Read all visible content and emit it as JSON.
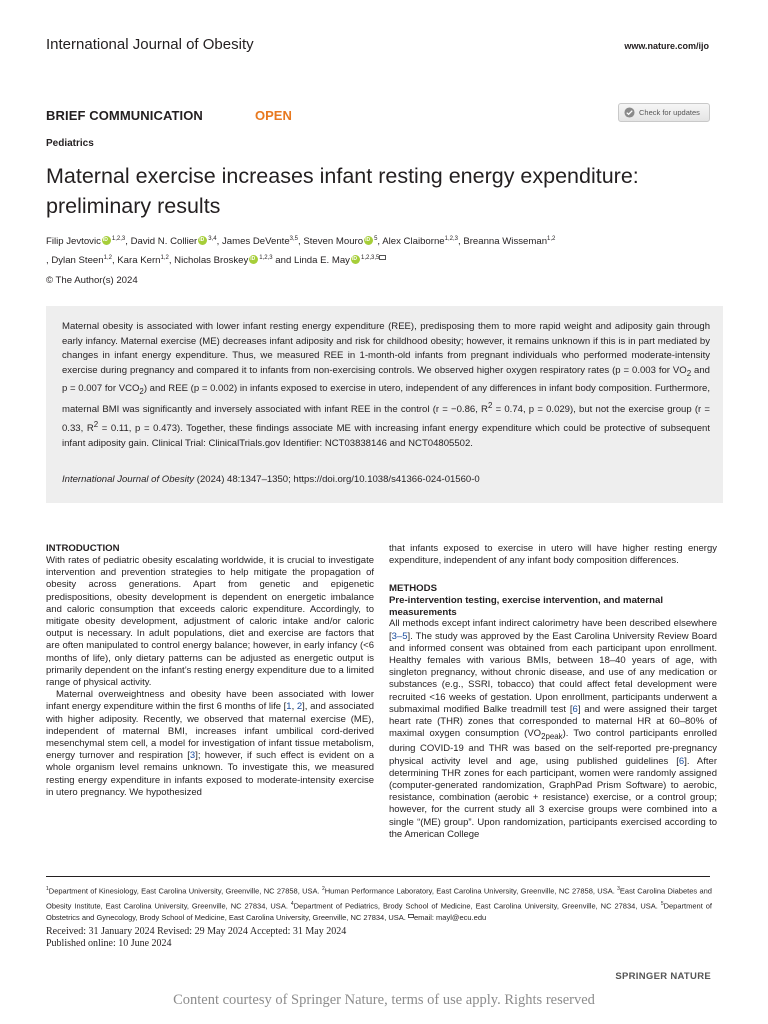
{
  "header": {
    "journal": "International Journal of Obesity",
    "url": "www.nature.com/ijo"
  },
  "article_type": "BRIEF COMMUNICATION",
  "open_label": "OPEN",
  "check_updates": "Check for updates",
  "section": "Pediatrics",
  "title": "Maternal exercise increases infant resting energy expenditure: preliminary results",
  "authors": {
    "a1": "Filip Jevtovic",
    "a1_sup": "1,2,3",
    "a2": ", David N. Collier",
    "a2_sup": "3,4",
    "a3": ", James DeVente",
    "a3_sup": "3,5",
    "a4": ", Steven Mouro",
    "a4_sup": "5",
    "a5": ", Alex Claiborne",
    "a5_sup": "1,2,3",
    "a6": ", Breanna Wisseman",
    "a6_sup": "1,2",
    "a7": ", Dylan Steen",
    "a7_sup": "1,2",
    "a8": ", Kara Kern",
    "a8_sup": "1,2",
    "a9": ", Nicholas Broskey",
    "a9_sup": "1,2,3",
    "a10": " and Linda E. May",
    "a10_sup": "1,2,3,5"
  },
  "copyright": "© The Author(s) 2024",
  "abstract": {
    "p1": "Maternal obesity is associated with lower infant resting energy expenditure (REE), predisposing them to more rapid weight and adiposity gain through early infancy. Maternal exercise (ME) decreases infant adiposity and risk for childhood obesity; however, it remains unknown if this is in part mediated by changes in infant energy expenditure. Thus, we measured REE in 1-month-old infants from pregnant individuals who performed moderate-intensity exercise during pregnancy and compared it to infants from non-exercising controls. We observed higher oxygen respiratory rates (p = 0.003 for VO",
    "p2": " and p = 0.007 for VCO",
    "p3": ") and REE (p = 0.002) in infants exposed to exercise in utero, independent of any differences in infant body composition. Furthermore, maternal BMI was significantly and inversely associated with infant REE in the control (r = −0.86, R",
    "p4": " = 0.74, p = 0.029), but not the exercise group (r = 0.33, R",
    "p5": " = 0.11, p = 0.473). Together, these findings associate ME with increasing infant energy expenditure which could be protective of subsequent infant adiposity gain. Clinical Trial: ClinicalTrials.gov Identifier: NCT03838146 and NCT04805502.",
    "sub2": "2",
    "journal_name": "International Journal of Obesity",
    "citation": " (2024) 48:1347–1350; https://doi.org/10.1038/s41366-024-01560-0"
  },
  "intro": {
    "heading": "INTRODUCTION",
    "p1": "With rates of pediatric obesity escalating worldwide, it is crucial to investigate intervention and prevention strategies to help mitigate the propagation of obesity across generations. Apart from genetic and epigenetic predispositions, obesity development is dependent on energetic imbalance and caloric consumption that exceeds caloric expenditure. Accordingly, to mitigate obesity development, adjustment of caloric intake and/or caloric output is necessary. In adult populations, diet and exercise are factors that are often manipulated to control energy balance; however, in early infancy (<6 months of life), only dietary patterns can be adjusted as energetic output is primarily dependent on the infant’s resting energy expenditure due to a limited range of physical activity.",
    "p2a": "Maternal overweightness and obesity have been associated with lower infant energy expenditure within the first 6 months of life [",
    "r1": "1",
    "comma": ", ",
    "r2": "2",
    "p2b": "], and associated with higher adiposity. Recently, we observed that maternal exercise (ME), independent of maternal BMI, increases infant umbilical cord-derived mesenchymal stem cell, a model for investigation of infant tissue metabolism, energy turnover and respiration [",
    "r3": "3",
    "p2c": "]; however, if such effect is evident on a whole organism level remains unknown. To investigate this, we measured resting energy expenditure in infants exposed to moderate-intensity exercise in utero pregnancy. We hypothesized"
  },
  "right_col": {
    "cont": "that infants exposed to exercise in utero will have higher resting energy expenditure, independent of any infant body composition differences.",
    "methods_heading": "METHODS",
    "sub_heading": "Pre-intervention testing, exercise intervention, and maternal measurements",
    "m1": "All methods except infant indirect calorimetry have been described elsewhere [",
    "r35": "3–5",
    "m2": "]. The study was approved by the East Carolina University Review Board and informed consent was obtained from each participant upon enrollment. Healthy females with various BMIs, between 18–40 years of age, with singleton pregnancy, without chronic disease, and use of any medication or substances (e.g., SSRI, tobacco) that could affect fetal development were recruited <16 weeks of gestation. Upon enrollment, participants underwent a submaximal modified Balke treadmill test [",
    "r6": "6",
    "m3": "] and were assigned their target heart rate (THR) zones that corresponded to maternal HR at 60–80% of maximal oxygen consumption (VO",
    "vo2sub": "2peak",
    "m4": "). Two control participants enrolled during COVID-19 and THR was based on the self-reported pre-pregnancy physical activity level and age, using published guidelines [",
    "r6b": "6",
    "m5": "]. After determining THR zones for each participant, women were randomly assigned (computer-generated randomization, GraphPad Prism Software) to aerobic, resistance, combination (aerobic + resistance) exercise, or a control group; however, for the current study all 3 exercise groups were combined into a single “(ME) group”. Upon randomization, participants exercised according to the American College"
  },
  "footnotes": {
    "s1": "1",
    "t1": "Department of Kinesiology, East Carolina University, Greenville, NC 27858, USA. ",
    "s2": "2",
    "t2": "Human Performance Laboratory, East Carolina University, Greenville, NC 27858, USA. ",
    "s3": "3",
    "t3": "East Carolina Diabetes and Obesity Institute, East Carolina University, Greenville, NC 27834, USA. ",
    "s4": "4",
    "t4": "Department of Pediatrics, Brody School of Medicine, East Carolina University, Greenville, NC 27834, USA. ",
    "s5": "5",
    "t5": "Department of Obstetrics and Gynecology, Brody School of Medicine, East Carolina University, Greenville, NC 27834, USA. ",
    "email": "email: mayl@ecu.edu"
  },
  "dates": {
    "line1": "Received: 31 January 2024 Revised: 29 May 2024 Accepted: 31 May 2024",
    "line2": "Published online: 10 June 2024"
  },
  "publisher": "SPRINGER NATURE",
  "courtesy": "Content courtesy of Springer Nature, terms of use apply. Rights reserved"
}
